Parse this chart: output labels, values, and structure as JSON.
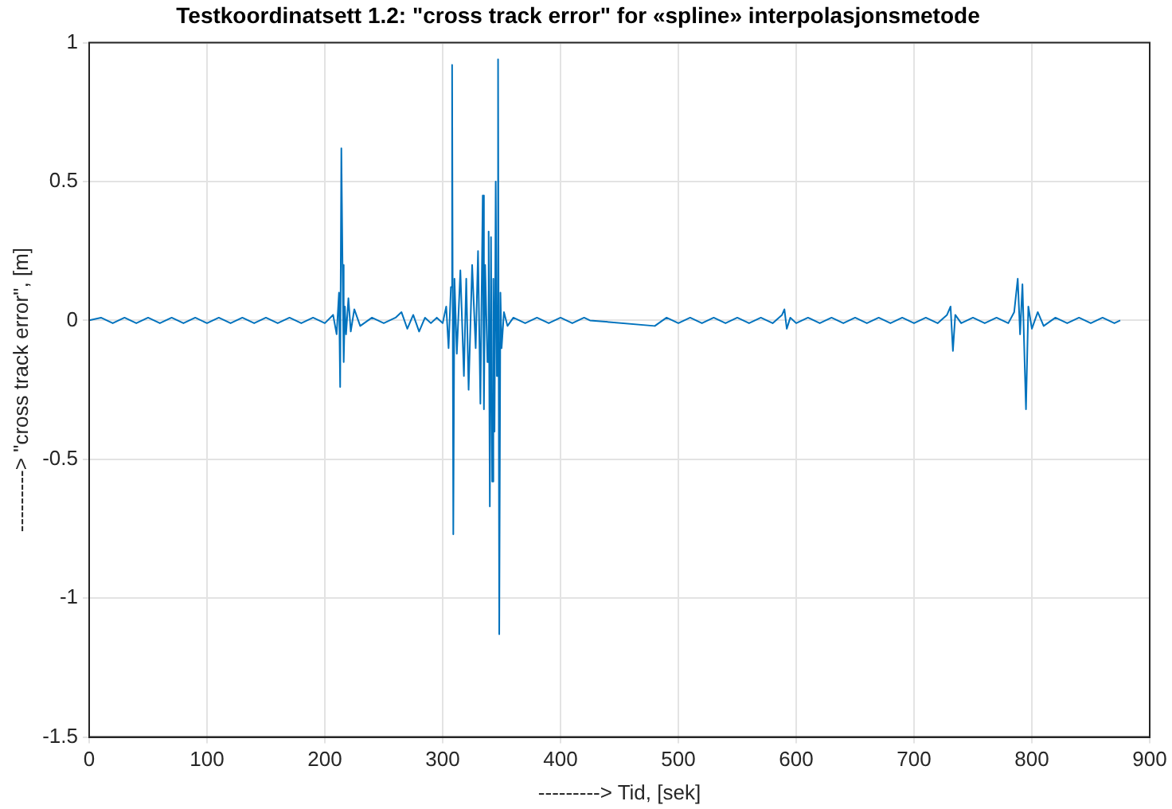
{
  "chart_data": {
    "type": "line",
    "title": "Testkoordinatsett 1.2: \"cross track error\" for «spline» interpolasjonsmetode",
    "xlabel": "---------> Tid, [sek]",
    "ylabel": "---------> \"cross track error\", [m]",
    "xlim": [
      0,
      900
    ],
    "xticks": [
      0,
      100,
      200,
      300,
      400,
      500,
      600,
      700,
      800,
      900
    ],
    "ylim": [
      -1.5,
      1
    ],
    "yticks": [
      -1.5,
      -1,
      -0.5,
      0,
      0.5,
      1
    ],
    "grid": true,
    "marker": "none",
    "line_style": "solid",
    "series": [
      {
        "color": "#0072bd",
        "x": [
          0,
          10,
          20,
          30,
          40,
          50,
          60,
          70,
          80,
          90,
          100,
          110,
          120,
          130,
          140,
          150,
          160,
          170,
          180,
          190,
          200,
          207,
          210,
          212,
          213,
          214,
          215,
          216,
          217,
          218,
          220,
          222,
          225,
          230,
          240,
          250,
          260,
          265,
          270,
          275,
          280,
          285,
          290,
          295,
          300,
          303,
          305,
          307,
          308,
          309,
          310,
          312,
          315,
          318,
          320,
          322,
          325,
          328,
          330,
          332,
          334,
          335,
          336,
          338,
          339,
          340,
          341,
          342,
          343,
          344,
          345,
          346,
          347,
          348,
          349,
          350,
          352,
          355,
          360,
          370,
          380,
          390,
          400,
          410,
          420,
          425,
          480,
          490,
          500,
          510,
          520,
          530,
          540,
          550,
          560,
          570,
          580,
          588,
          590,
          592,
          595,
          600,
          610,
          620,
          630,
          640,
          650,
          660,
          670,
          680,
          690,
          700,
          710,
          720,
          728,
          731,
          733,
          735,
          740,
          750,
          760,
          770,
          780,
          785,
          788,
          790,
          792,
          795,
          797,
          800,
          805,
          810,
          820,
          830,
          840,
          850,
          860,
          870,
          875
        ],
        "values": [
          0,
          0.01,
          -0.01,
          0.01,
          -0.01,
          0.01,
          -0.01,
          0.01,
          -0.01,
          0.01,
          -0.01,
          0.01,
          -0.01,
          0.01,
          -0.01,
          0.01,
          -0.01,
          0.01,
          -0.01,
          0.01,
          -0.01,
          0.02,
          -0.05,
          0.1,
          -0.24,
          0.62,
          0.2,
          -0.15,
          0.05,
          -0.05,
          0.08,
          -0.04,
          0.04,
          -0.02,
          0.01,
          -0.01,
          0.01,
          0.03,
          -0.03,
          0.02,
          -0.04,
          0.01,
          -0.01,
          0.01,
          -0.01,
          0.05,
          -0.1,
          0.12,
          0.92,
          -0.77,
          0.15,
          -0.12,
          0.18,
          -0.2,
          0.15,
          -0.25,
          0.2,
          -0.1,
          0.25,
          -0.3,
          0.45,
          -0.32,
          0.2,
          -0.15,
          0.32,
          -0.67,
          0.3,
          -0.58,
          0.15,
          -0.4,
          0.5,
          -0.2,
          0.94,
          -1.13,
          0.1,
          -0.1,
          0.03,
          -0.02,
          0.01,
          -0.01,
          0.01,
          -0.01,
          0.01,
          -0.01,
          0.01,
          0,
          -0.02,
          0.01,
          -0.01,
          0.01,
          -0.01,
          0.01,
          -0.01,
          0.01,
          -0.01,
          0.01,
          -0.01,
          0.02,
          0.04,
          -0.03,
          0.01,
          -0.01,
          0.01,
          -0.01,
          0.01,
          -0.01,
          0.01,
          -0.01,
          0.01,
          -0.01,
          0.01,
          -0.01,
          0.01,
          -0.01,
          0.02,
          0.05,
          -0.11,
          0.02,
          -0.01,
          0.01,
          -0.01,
          0.01,
          -0.01,
          0.03,
          0.15,
          -0.05,
          0.13,
          -0.32,
          0.05,
          -0.03,
          0.03,
          -0.02,
          0.01,
          -0.01,
          0.01,
          -0.01,
          0.01,
          -0.01,
          0
        ]
      }
    ]
  }
}
